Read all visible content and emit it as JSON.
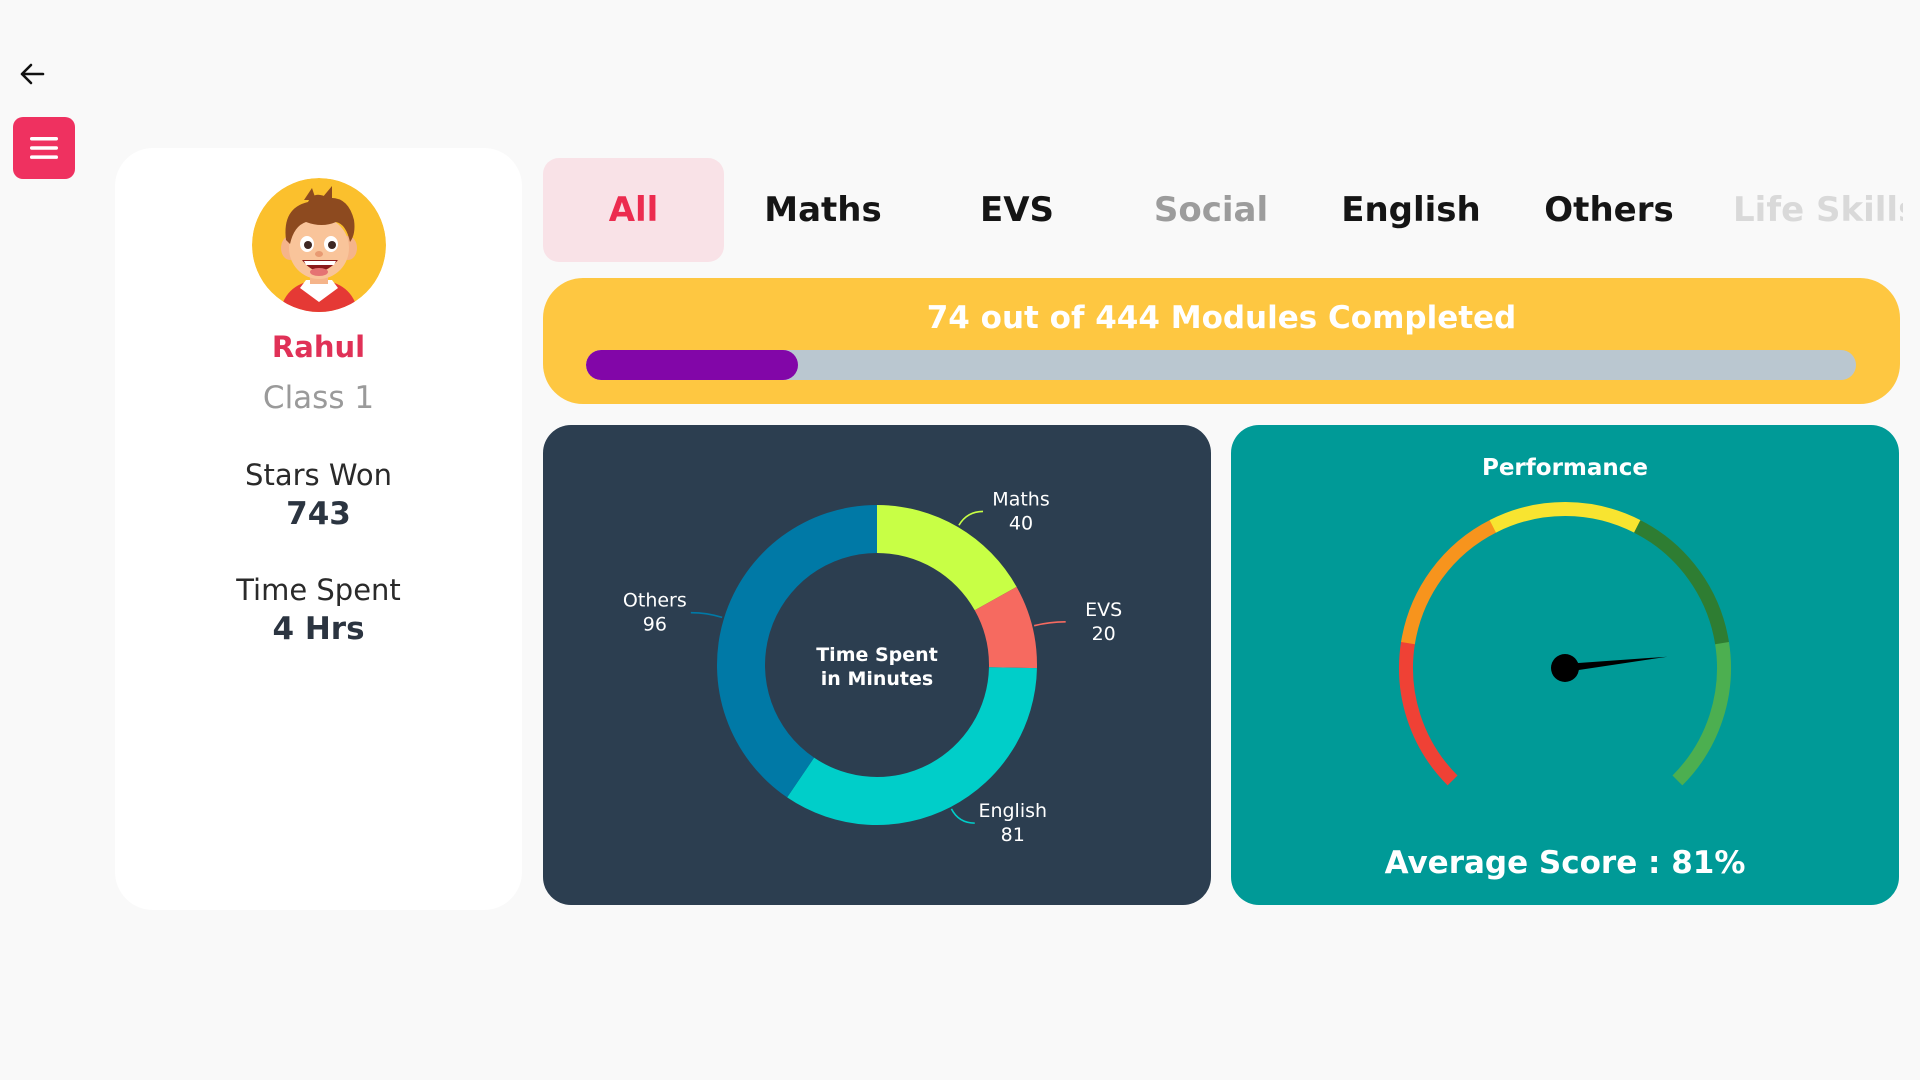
{
  "nav": {
    "back_icon": "arrow-left-icon",
    "menu_icon": "hamburger-menu-icon",
    "menu_color": "#ef3160"
  },
  "profile": {
    "avatar_icon": "boy-avatar-icon",
    "name": "Rahul",
    "class": "Class 1",
    "stars_label": "Stars Won",
    "stars_value": "743",
    "time_label": "Time Spent",
    "time_value": "4 Hrs"
  },
  "tabs": [
    {
      "label": "All",
      "state": "active"
    },
    {
      "label": "Maths",
      "state": "normal"
    },
    {
      "label": "EVS",
      "state": "normal"
    },
    {
      "label": "Social",
      "state": "muted"
    },
    {
      "label": "English",
      "state": "normal"
    },
    {
      "label": "Others",
      "state": "normal"
    },
    {
      "label": "Life Skills",
      "state": "faded"
    }
  ],
  "progress": {
    "title": "74 out of 444 Modules Completed",
    "completed": 74,
    "total": 444,
    "fill_color": "#8206a8",
    "track_color": "#bac7d0",
    "card_color": "#fec741"
  },
  "chart_data": [
    {
      "type": "pie",
      "center_label_line1": "Time Spent",
      "center_label_line2": "in Minutes",
      "slices": [
        {
          "label": "Maths",
          "value": 40,
          "color": "#c8ff45"
        },
        {
          "label": "EVS",
          "value": 20,
          "color": "#f66a60"
        },
        {
          "label": "English",
          "value": 81,
          "color": "#00cec9"
        },
        {
          "label": "Others",
          "value": 96,
          "color": "#0079a6"
        }
      ]
    }
  ],
  "performance": {
    "title": "Performance",
    "average_label": "Average Score : 81%",
    "score_percent": 81,
    "gauge_colors": [
      "#ef4135",
      "#f7941d",
      "#f8e430",
      "#2e7d32",
      "#4caf50"
    ]
  }
}
